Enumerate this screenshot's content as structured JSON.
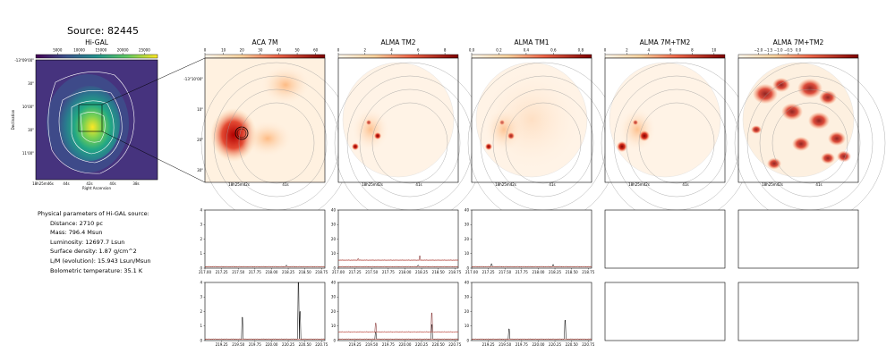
{
  "source_title": "Source: 82445",
  "higal": {
    "title": "Hi-GAL",
    "colorbar_ticks": [
      "5000",
      "10000",
      "15000",
      "20000",
      "25000"
    ],
    "yticks": [
      "-13°09'00\"",
      "30\"",
      "10'00\"",
      "30\"",
      "11'00\""
    ],
    "xticks": [
      "18h25m46s",
      "44s",
      "42s",
      "40s",
      "38s"
    ],
    "xlabel": "Right Ascension",
    "ylabel": "Declination"
  },
  "panels": [
    {
      "title": "ACA 7M",
      "cbar_ticks": [
        "0",
        "10",
        "20",
        "30",
        "40",
        "50",
        "60"
      ],
      "yticks": [
        "-13°10'00\"",
        "10\"",
        "20\"",
        "30\""
      ],
      "xticks": [
        "18h25m42s",
        "41s"
      ]
    },
    {
      "title": "ALMA TM2",
      "cbar_ticks": [
        "0",
        "2",
        "4",
        "6",
        "8"
      ],
      "xticks": [
        "18h25m42s",
        "41s"
      ]
    },
    {
      "title": "ALMA TM1",
      "cbar_ticks": [
        "0.0",
        "0.2",
        "0.4",
        "0.6",
        "0.8"
      ],
      "xticks": [
        "18h25m42s",
        "41s"
      ]
    },
    {
      "title": "ALMA 7M+TM2",
      "cbar_ticks": [
        "0",
        "2",
        "4",
        "6",
        "8",
        "10"
      ],
      "xticks": [
        "18h25m42s",
        "41s"
      ]
    },
    {
      "title": "ALMA 7M+TM2",
      "cbar_ticks": [
        "−2.0",
        "−1.5",
        "−1.0",
        "−0.5",
        "0.0"
      ],
      "xticks": [
        "18h25m42s",
        "41s"
      ]
    }
  ],
  "params": {
    "heading": "Physical parameters of Hi-GAL source:",
    "lines": [
      "Distance: 2710 pc",
      "Mass: 796.4 Msun",
      "Luminosity: 12697.7 Lsun",
      "Surface density: 1.87 g/cm^2",
      "L/M (evolution): 15.943 Lsun/Msun",
      "Bolometric temperature: 35.1 K"
    ]
  },
  "chart_data": [
    {
      "type": "line",
      "panel": "spectrum-row1-aca",
      "xlim": [
        217.0,
        218.8
      ],
      "ylim": [
        0,
        4
      ],
      "xticks": [
        "217.00",
        "217.25",
        "217.50",
        "217.75",
        "218.00",
        "218.25",
        "218.50",
        "218.75"
      ],
      "yticks": [
        "0",
        "1",
        "2",
        "3",
        "4"
      ],
      "series": [
        {
          "baseline": 0.1,
          "peaks": [
            {
              "x": 218.22,
              "y": 0.2
            }
          ]
        }
      ]
    },
    {
      "type": "line",
      "panel": "spectrum-row1-tm2",
      "xlim": [
        217.0,
        218.8
      ],
      "ylim": [
        0,
        40
      ],
      "xticks": [
        "217.00",
        "217.25",
        "217.50",
        "217.75",
        "218.00",
        "218.25",
        "218.50",
        "218.75"
      ],
      "yticks": [
        "0",
        "10",
        "20",
        "30",
        "40"
      ],
      "series": [
        {
          "baseline": 1,
          "peaks": [
            {
              "x": 218.2,
              "y": 2
            }
          ]
        },
        {
          "baseline": 5.5,
          "peaks": [
            {
              "x": 217.3,
              "y": 6.5
            },
            {
              "x": 218.22,
              "y": 8.5
            }
          ]
        }
      ]
    },
    {
      "type": "line",
      "panel": "spectrum-row1-tm1",
      "xlim": [
        217.0,
        218.8
      ],
      "ylim": [
        0,
        40
      ],
      "xticks": [
        "217.00",
        "217.25",
        "217.50",
        "217.75",
        "218.00",
        "218.25",
        "218.50",
        "218.75"
      ],
      "yticks": [
        "0",
        "10",
        "20",
        "30",
        "40"
      ],
      "series": [
        {
          "baseline": 1,
          "peaks": [
            {
              "x": 217.3,
              "y": 3
            },
            {
              "x": 218.22,
              "y": 2.5
            }
          ]
        }
      ]
    },
    {
      "type": "line",
      "panel": "spectrum-row2-aca",
      "xlim": [
        219.0,
        220.8
      ],
      "ylim": [
        0,
        4
      ],
      "xticks": [
        "219.25",
        "219.50",
        "219.75",
        "220.00",
        "220.25",
        "220.50",
        "220.75"
      ],
      "yticks": [
        "0",
        "1",
        "2",
        "3",
        "4"
      ],
      "series": [
        {
          "baseline": 0.1,
          "peaks": [
            {
              "x": 219.56,
              "y": 1.6
            },
            {
              "x": 220.4,
              "y": 4.0
            },
            {
              "x": 220.43,
              "y": 2.0
            }
          ]
        }
      ]
    },
    {
      "type": "line",
      "panel": "spectrum-row2-tm2",
      "xlim": [
        219.0,
        220.8
      ],
      "ylim": [
        0,
        40
      ],
      "xticks": [
        "219.25",
        "219.50",
        "219.75",
        "220.00",
        "220.25",
        "220.50",
        "220.75"
      ],
      "yticks": [
        "0",
        "10",
        "20",
        "30",
        "40"
      ],
      "series": [
        {
          "baseline": 1,
          "peaks": [
            {
              "x": 219.56,
              "y": 6
            },
            {
              "x": 220.4,
              "y": 11
            }
          ]
        },
        {
          "baseline": 6,
          "peaks": [
            {
              "x": 219.56,
              "y": 12
            },
            {
              "x": 220.4,
              "y": 19
            }
          ]
        }
      ]
    },
    {
      "type": "line",
      "panel": "spectrum-row2-tm1",
      "xlim": [
        219.0,
        220.8
      ],
      "ylim": [
        0,
        40
      ],
      "xticks": [
        "219.25",
        "219.50",
        "219.75",
        "220.00",
        "220.25",
        "220.50",
        "220.75"
      ],
      "yticks": [
        "0",
        "10",
        "20",
        "30",
        "40"
      ],
      "series": [
        {
          "baseline": 1,
          "peaks": [
            {
              "x": 219.56,
              "y": 8
            },
            {
              "x": 220.4,
              "y": 14
            }
          ]
        }
      ]
    }
  ]
}
